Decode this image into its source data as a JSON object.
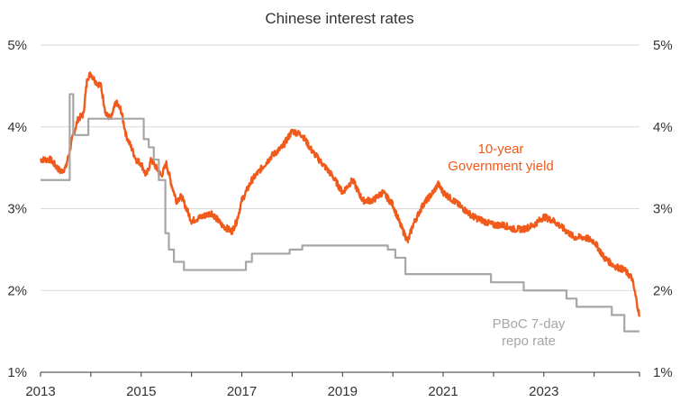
{
  "chart_data": {
    "type": "line",
    "title": "Chinese interest rates",
    "xlabel": "",
    "ylabel": "",
    "x_ticks": [
      "2013",
      "2015",
      "2017",
      "2019",
      "2021",
      "2023"
    ],
    "y_ticks": [
      "1%",
      "2%",
      "3%",
      "4%",
      "5%"
    ],
    "xlim": [
      2013,
      2024.9
    ],
    "ylim": [
      1,
      5
    ],
    "grid": true,
    "axes": "left-and-right",
    "series": [
      {
        "name": "10-year Government yield",
        "label_lines": [
          "10-year",
          "Government yield"
        ],
        "color": "#f05a1a",
        "x": [
          2013.0,
          2013.2,
          2013.4,
          2013.5,
          2013.65,
          2013.75,
          2013.85,
          2013.93,
          2014.0,
          2014.1,
          2014.2,
          2014.3,
          2014.4,
          2014.5,
          2014.6,
          2014.7,
          2014.8,
          2014.9,
          2015.0,
          2015.1,
          2015.2,
          2015.3,
          2015.4,
          2015.5,
          2015.6,
          2015.7,
          2015.8,
          2015.9,
          2016.0,
          2016.2,
          2016.4,
          2016.6,
          2016.8,
          2016.9,
          2017.0,
          2017.2,
          2017.4,
          2017.6,
          2017.8,
          2017.9,
          2018.0,
          2018.2,
          2018.4,
          2018.6,
          2018.8,
          2019.0,
          2019.2,
          2019.4,
          2019.6,
          2019.8,
          2020.0,
          2020.15,
          2020.3,
          2020.4,
          2020.6,
          2020.8,
          2020.9,
          2021.0,
          2021.2,
          2021.4,
          2021.6,
          2021.8,
          2022.0,
          2022.2,
          2022.4,
          2022.6,
          2022.8,
          2023.0,
          2023.2,
          2023.4,
          2023.6,
          2023.8,
          2024.0,
          2024.2,
          2024.4,
          2024.6,
          2024.75,
          2024.85,
          2024.9
        ],
        "values": [
          3.6,
          3.6,
          3.45,
          3.5,
          3.9,
          4.1,
          4.15,
          4.6,
          4.65,
          4.55,
          4.5,
          4.15,
          4.1,
          4.3,
          4.2,
          3.9,
          3.75,
          3.6,
          3.55,
          3.4,
          3.6,
          3.5,
          3.4,
          3.55,
          3.3,
          3.1,
          3.15,
          3.0,
          2.85,
          2.9,
          2.95,
          2.8,
          2.72,
          2.85,
          3.1,
          3.35,
          3.5,
          3.65,
          3.75,
          3.85,
          3.95,
          3.9,
          3.7,
          3.55,
          3.4,
          3.2,
          3.35,
          3.1,
          3.1,
          3.2,
          3.05,
          2.8,
          2.6,
          2.8,
          3.05,
          3.2,
          3.3,
          3.2,
          3.1,
          3.0,
          2.9,
          2.85,
          2.8,
          2.8,
          2.75,
          2.75,
          2.8,
          2.9,
          2.85,
          2.75,
          2.65,
          2.65,
          2.6,
          2.4,
          2.3,
          2.25,
          2.15,
          1.85,
          1.68
        ]
      },
      {
        "name": "PBoC 7-day repo rate",
        "label_lines": [
          "PBoC 7-day",
          "repo rate"
        ],
        "color": "#a6a6a6",
        "step": true,
        "x": [
          2013.0,
          2013.55,
          2013.58,
          2013.65,
          2013.95,
          2015.05,
          2015.15,
          2015.25,
          2015.35,
          2015.48,
          2015.55,
          2015.65,
          2015.85,
          2017.08,
          2017.2,
          2017.95,
          2018.2,
          2019.9,
          2020.05,
          2020.25,
          2021.95,
          2022.6,
          2023.45,
          2023.65,
          2024.35,
          2024.6,
          2024.65,
          2024.9
        ],
        "values": [
          3.35,
          3.35,
          4.4,
          3.9,
          4.1,
          3.85,
          3.75,
          3.6,
          3.35,
          2.7,
          2.5,
          2.35,
          2.25,
          2.35,
          2.45,
          2.5,
          2.55,
          2.5,
          2.4,
          2.2,
          2.1,
          2.0,
          1.9,
          1.8,
          1.7,
          1.5,
          1.5,
          1.5
        ]
      }
    ]
  }
}
